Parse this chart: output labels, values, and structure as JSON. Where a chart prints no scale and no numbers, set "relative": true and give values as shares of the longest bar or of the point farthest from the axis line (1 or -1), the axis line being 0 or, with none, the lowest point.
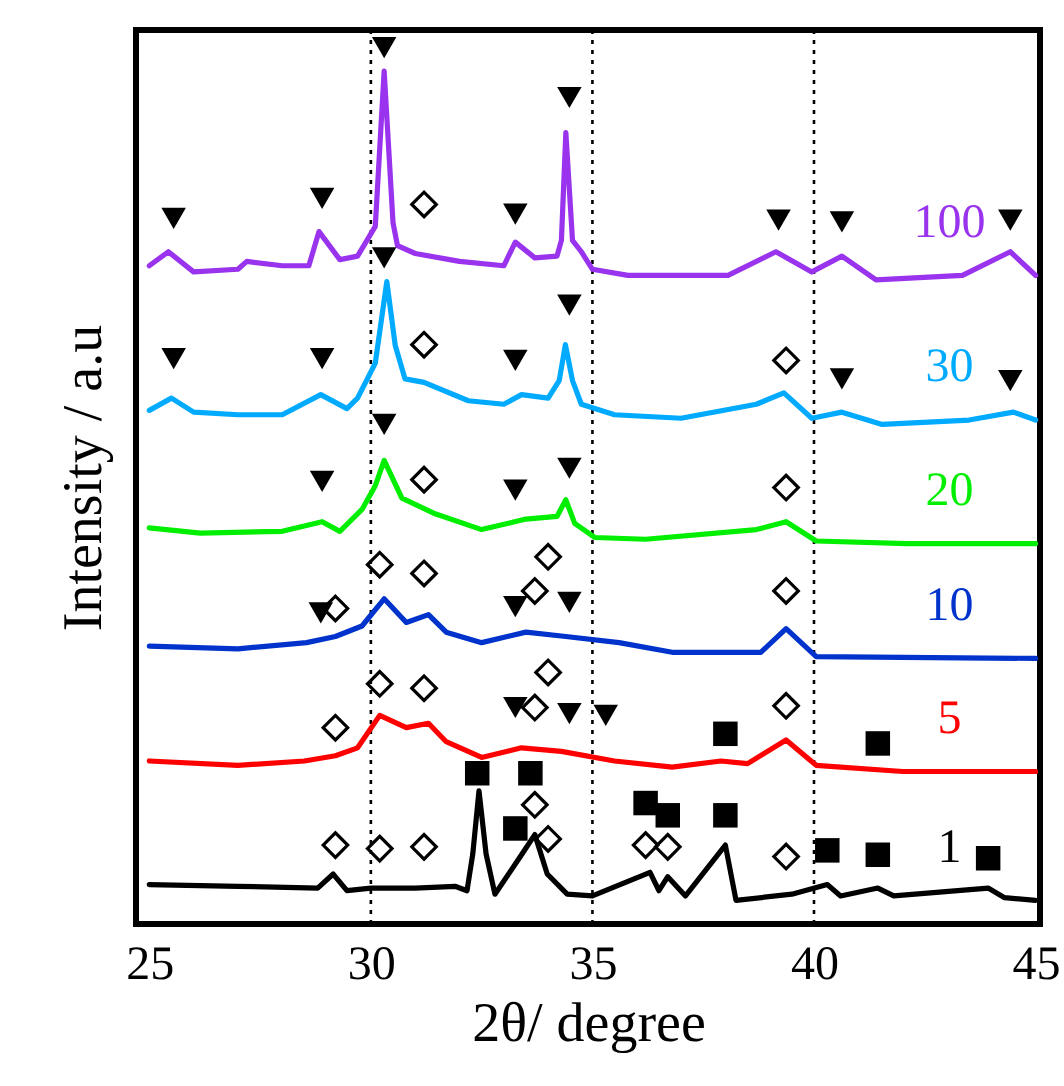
{
  "chart_data": {
    "type": "line",
    "xlabel": "2θ/ degree",
    "ylabel": "Intensity / a.u",
    "relative": true,
    "xlim": [
      24.7,
      45.1
    ],
    "xticks": [
      25,
      30,
      35,
      40,
      45
    ],
    "line_style": "solid",
    "ref_lines": [
      {
        "axis": "x",
        "value": 30,
        "color": "#000000",
        "line_style": "dotted"
      },
      {
        "axis": "x",
        "value": 35,
        "color": "#000000",
        "line_style": "dotted"
      },
      {
        "axis": "x",
        "value": 40,
        "color": "#000000",
        "line_style": "dotted"
      }
    ],
    "series": [
      {
        "name": "100",
        "color": "#9933ee",
        "x": [
          25.0,
          25.43,
          26.0,
          27.0,
          27.2,
          28.0,
          28.6,
          28.83,
          29.3,
          29.7,
          30.1,
          30.3,
          30.5,
          30.6,
          31.0,
          32.0,
          33.0,
          33.26,
          33.7,
          34.2,
          34.3,
          34.4,
          34.55,
          34.75,
          35.0,
          35.8,
          38.06,
          39.14,
          39.95,
          40.63,
          41.4,
          43.35,
          44.43,
          45.0
        ],
        "values": [
          0.751,
          0.767,
          0.744,
          0.747,
          0.756,
          0.751,
          0.751,
          0.79,
          0.758,
          0.762,
          0.796,
          0.973,
          0.8,
          0.774,
          0.765,
          0.756,
          0.751,
          0.778,
          0.76,
          0.762,
          0.78,
          0.903,
          0.78,
          0.767,
          0.747,
          0.74,
          0.74,
          0.767,
          0.744,
          0.762,
          0.735,
          0.74,
          0.767,
          0.74
        ]
      },
      {
        "name": "30",
        "color": "#00aaff",
        "x": [
          25.0,
          25.5,
          26.0,
          27.0,
          28.0,
          28.87,
          29.46,
          29.7,
          30.1,
          30.36,
          30.55,
          30.77,
          31.2,
          32.2,
          33.0,
          33.4,
          34.0,
          34.25,
          34.39,
          34.55,
          34.75,
          35.5,
          37.0,
          38.7,
          39.32,
          39.95,
          40.63,
          41.54,
          43.5,
          44.5,
          45.0
        ],
        "values": [
          0.586,
          0.6,
          0.584,
          0.581,
          0.581,
          0.604,
          0.588,
          0.6,
          0.64,
          0.733,
          0.66,
          0.622,
          0.618,
          0.597,
          0.593,
          0.604,
          0.6,
          0.62,
          0.661,
          0.62,
          0.593,
          0.581,
          0.577,
          0.593,
          0.606,
          0.577,
          0.584,
          0.57,
          0.575,
          0.584,
          0.575
        ]
      },
      {
        "name": "20",
        "color": "#00ee00",
        "x": [
          25.0,
          26.15,
          28.0,
          28.9,
          29.3,
          29.8,
          30.1,
          30.3,
          30.7,
          31.45,
          32.5,
          33.5,
          34.2,
          34.4,
          34.6,
          35.05,
          36.2,
          38.7,
          39.37,
          40.05,
          42.1,
          45.0
        ],
        "values": [
          0.452,
          0.446,
          0.448,
          0.459,
          0.448,
          0.473,
          0.5,
          0.529,
          0.486,
          0.468,
          0.45,
          0.462,
          0.465,
          0.484,
          0.457,
          0.441,
          0.439,
          0.45,
          0.459,
          0.437,
          0.434,
          0.434
        ]
      },
      {
        "name": "10",
        "color": "#0033cc",
        "x": [
          25.0,
          27.0,
          28.55,
          29.2,
          29.8,
          30.3,
          30.8,
          31.3,
          31.7,
          32.5,
          33.5,
          34.4,
          35.6,
          36.8,
          38.8,
          39.37,
          40.05,
          45.0
        ],
        "values": [
          0.317,
          0.314,
          0.321,
          0.328,
          0.34,
          0.371,
          0.344,
          0.353,
          0.333,
          0.321,
          0.333,
          0.328,
          0.321,
          0.31,
          0.31,
          0.337,
          0.305,
          0.303
        ]
      },
      {
        "name": "5",
        "color": "#ff0000",
        "x": [
          25.0,
          27.0,
          28.5,
          29.2,
          29.7,
          30.2,
          30.8,
          31.3,
          31.7,
          32.5,
          33.4,
          34.3,
          35.5,
          36.8,
          37.9,
          38.5,
          39.37,
          40.05,
          42.0,
          45.0
        ],
        "values": [
          0.186,
          0.181,
          0.186,
          0.192,
          0.201,
          0.238,
          0.224,
          0.229,
          0.208,
          0.19,
          0.201,
          0.197,
          0.186,
          0.179,
          0.186,
          0.183,
          0.21,
          0.181,
          0.174,
          0.174
        ]
      },
      {
        "name": "1",
        "color": "#000000",
        "x": [
          25.0,
          27.0,
          28.8,
          29.15,
          29.46,
          30.0,
          31.0,
          31.9,
          32.17,
          32.3,
          32.44,
          32.6,
          32.8,
          33.4,
          33.7,
          33.98,
          34.43,
          35.0,
          36.3,
          36.5,
          36.7,
          37.1,
          38.0,
          38.24,
          39.5,
          40.3,
          40.6,
          41.44,
          41.8,
          43.93,
          44.3,
          45.0
        ],
        "values": [
          0.045,
          0.043,
          0.041,
          0.057,
          0.038,
          0.041,
          0.041,
          0.043,
          0.038,
          0.08,
          0.152,
          0.08,
          0.034,
          0.079,
          0.102,
          0.057,
          0.034,
          0.032,
          0.059,
          0.038,
          0.054,
          0.032,
          0.09,
          0.027,
          0.034,
          0.045,
          0.032,
          0.041,
          0.032,
          0.041,
          0.03,
          0.027
        ]
      },
      {
        "type": "scatter",
        "marker": "triangle",
        "color": "#000000",
        "x": [
          25.55,
          28.9,
          30.3,
          33.26,
          34.48,
          39.2,
          40.63,
          44.43,
          25.55,
          28.9,
          30.3,
          33.26,
          34.48,
          40.63,
          44.43,
          28.9,
          30.3,
          33.26,
          34.48,
          28.87,
          33.26,
          34.48,
          33.26,
          34.48,
          35.3
        ],
        "values": [
          0.805,
          0.828,
          1.0,
          0.81,
          0.943,
          0.803,
          0.801,
          0.803,
          0.645,
          0.645,
          0.76,
          0.643,
          0.706,
          0.622,
          0.62,
          0.505,
          0.57,
          0.495,
          0.52,
          0.355,
          0.362,
          0.367,
          0.247,
          0.24,
          0.238
        ]
      },
      {
        "type": "scatter",
        "marker": "diamond",
        "color": "#000000",
        "x": [
          31.2,
          31.2,
          39.37,
          31.2,
          39.37,
          29.2,
          30.2,
          31.2,
          33.7,
          34.0,
          39.37,
          29.2,
          30.2,
          31.2,
          34.0,
          33.7,
          39.37,
          29.2,
          30.2,
          31.2,
          33.7,
          34.0,
          36.2,
          36.7,
          39.37
        ],
        "values": [
          0.821,
          0.661,
          0.643,
          0.507,
          0.498,
          0.36,
          0.41,
          0.4,
          0.38,
          0.419,
          0.38,
          0.224,
          0.274,
          0.269,
          0.287,
          0.247,
          0.249,
          0.09,
          0.086,
          0.088,
          0.136,
          0.097,
          0.09,
          0.088,
          0.077
        ]
      },
      {
        "type": "scatter",
        "marker": "square",
        "color": "#000000",
        "x": [
          38.0,
          41.44,
          32.4,
          33.6,
          33.26,
          36.2,
          36.7,
          38.0,
          40.3,
          41.44,
          43.93
        ],
        "values": [
          0.217,
          0.206,
          0.172,
          0.172,
          0.109,
          0.138,
          0.124,
          0.124,
          0.084,
          0.079,
          0.075
        ]
      }
    ]
  }
}
